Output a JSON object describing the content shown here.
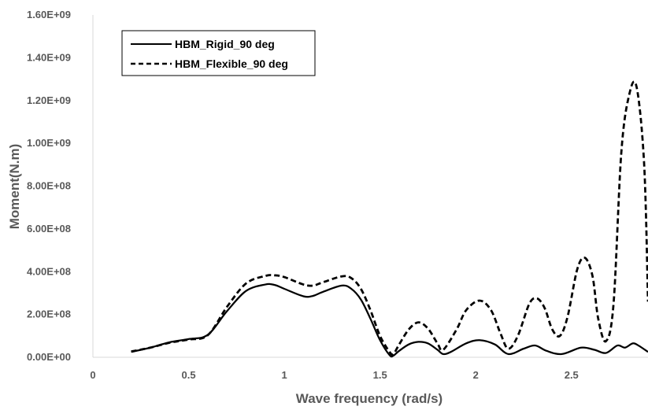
{
  "chart_data": {
    "type": "line",
    "title": "",
    "xlabel": "Wave frequency (rad/s)",
    "ylabel": "Moment(N.m)",
    "xlim": [
      0,
      2.9
    ],
    "ylim": [
      0,
      1600000000
    ],
    "x_ticks": [
      "0",
      "0.5",
      "1",
      "1.5",
      "2",
      "2.5"
    ],
    "y_ticks": [
      "0.00E+00",
      "2.00E+08",
      "4.00E+08",
      "6.00E+08",
      "8.00E+08",
      "1.00E+09",
      "1.20E+09",
      "1.40E+09",
      "1.60E+09"
    ],
    "grid": false,
    "legend_position": "top-left",
    "series": [
      {
        "name": "HBM_Rigid_90 deg",
        "style": "solid",
        "color": "#000000",
        "x": [
          0.2,
          0.3,
          0.4,
          0.5,
          0.6,
          0.7,
          0.8,
          0.9,
          0.95,
          1.0,
          1.1,
          1.15,
          1.2,
          1.3,
          1.35,
          1.4,
          1.45,
          1.5,
          1.55,
          1.57,
          1.6,
          1.65,
          1.7,
          1.75,
          1.8,
          1.83,
          1.87,
          1.95,
          2.02,
          2.1,
          2.17,
          2.25,
          2.31,
          2.37,
          2.45,
          2.55,
          2.62,
          2.68,
          2.74,
          2.78,
          2.82,
          2.85,
          2.9
        ],
        "y": [
          25000000,
          45000000,
          70000000,
          85000000,
          105000000,
          215000000,
          310000000,
          340000000,
          338000000,
          320000000,
          285000000,
          287000000,
          305000000,
          335000000,
          320000000,
          270000000,
          180000000,
          80000000,
          10000000,
          8000000,
          30000000,
          60000000,
          72000000,
          65000000,
          35000000,
          15000000,
          25000000,
          65000000,
          80000000,
          60000000,
          15000000,
          40000000,
          55000000,
          30000000,
          15000000,
          45000000,
          35000000,
          20000000,
          55000000,
          45000000,
          65000000,
          55000000,
          25000000
        ]
      },
      {
        "name": "HBM_Flexible_90 deg",
        "style": "dashed",
        "color": "#000000",
        "x": [
          0.2,
          0.3,
          0.4,
          0.5,
          0.6,
          0.7,
          0.8,
          0.9,
          0.95,
          1.0,
          1.1,
          1.15,
          1.2,
          1.3,
          1.35,
          1.4,
          1.45,
          1.5,
          1.55,
          1.57,
          1.6,
          1.65,
          1.7,
          1.75,
          1.8,
          1.83,
          1.9,
          1.95,
          2.02,
          2.08,
          2.13,
          2.17,
          2.22,
          2.28,
          2.32,
          2.36,
          2.4,
          2.44,
          2.48,
          2.53,
          2.57,
          2.61,
          2.64,
          2.68,
          2.72,
          2.76,
          2.8,
          2.84,
          2.88,
          2.9
        ],
        "y": [
          27000000,
          45000000,
          68000000,
          83000000,
          103000000,
          235000000,
          345000000,
          380000000,
          383000000,
          375000000,
          340000000,
          335000000,
          350000000,
          378000000,
          370000000,
          320000000,
          220000000,
          100000000,
          25000000,
          15000000,
          60000000,
          130000000,
          163000000,
          135000000,
          65000000,
          35000000,
          130000000,
          220000000,
          265000000,
          220000000,
          110000000,
          40000000,
          100000000,
          250000000,
          275000000,
          230000000,
          130000000,
          100000000,
          190000000,
          410000000,
          465000000,
          380000000,
          180000000,
          75000000,
          250000000,
          950000000,
          1220000000,
          1265000000,
          900000000,
          260000000
        ]
      }
    ]
  }
}
